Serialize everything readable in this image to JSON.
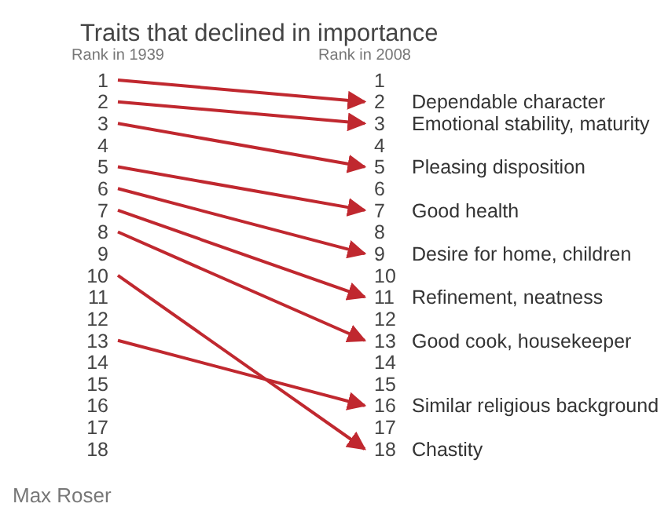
{
  "chart_data": {
    "type": "line",
    "title": "Traits that declined in importance",
    "categories": [
      "Rank in 1939",
      "Rank in 2008"
    ],
    "ylim": [
      18,
      1
    ],
    "yticks": [
      1,
      2,
      3,
      4,
      5,
      6,
      7,
      8,
      9,
      10,
      11,
      12,
      13,
      14,
      15,
      16,
      17,
      18
    ],
    "y2lim": [
      18,
      1
    ],
    "y2ticks": [
      1,
      2,
      3,
      4,
      5,
      6,
      7,
      8,
      9,
      10,
      11,
      12,
      13,
      14,
      15,
      16,
      17,
      18
    ],
    "grid": false,
    "legend": false,
    "marker": "none",
    "line_style": "solid",
    "series": [
      {
        "name": "Dependable character",
        "color": "#c0282f",
        "values": [
          1,
          2
        ]
      },
      {
        "name": "Emotional stability, maturity",
        "color": "#c0282f",
        "values": [
          2,
          3
        ]
      },
      {
        "name": "Pleasing disposition",
        "color": "#c0282f",
        "values": [
          3,
          5
        ]
      },
      {
        "name": "Good health",
        "color": "#c0282f",
        "values": [
          5,
          7
        ]
      },
      {
        "name": "Desire for home, children",
        "color": "#c0282f",
        "values": [
          6,
          9
        ]
      },
      {
        "name": "Refinement, neatness",
        "color": "#c0282f",
        "values": [
          7,
          11
        ]
      },
      {
        "name": "Good cook, housekeeper",
        "color": "#c0282f",
        "values": [
          8,
          13
        ]
      },
      {
        "name": "Similar religious background",
        "color": "#c0282f",
        "values": [
          13,
          16
        ]
      },
      {
        "name": "Chastity",
        "color": "#c0282f",
        "values": [
          10,
          18
        ]
      }
    ],
    "annotations": [
      "Max Roser"
    ]
  }
}
